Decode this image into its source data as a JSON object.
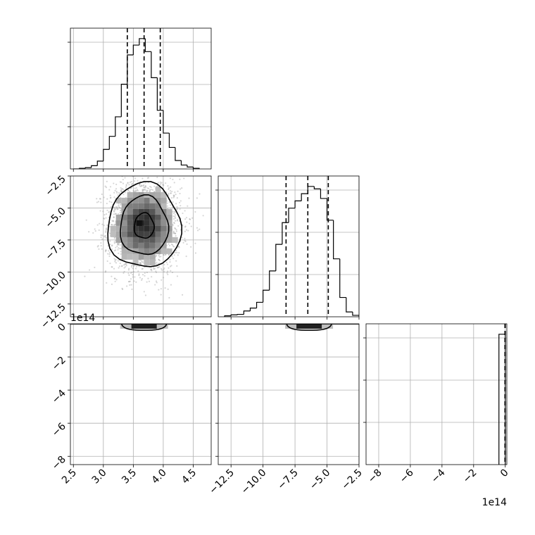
{
  "chart_data": [
    {
      "panel": "1d-marginal-param1",
      "type": "histogram",
      "xlim": [
        2.45,
        4.8
      ],
      "x_ticks": [
        2.5,
        3.0,
        3.5,
        4.0,
        4.5
      ],
      "x_tick_labels": [],
      "bin_edges": [
        2.5,
        2.6,
        2.7,
        2.8,
        2.9,
        3.0,
        3.1,
        3.2,
        3.3,
        3.4,
        3.5,
        3.6,
        3.7,
        3.8,
        3.9,
        4.0,
        4.1,
        4.2,
        4.3,
        4.4,
        4.5,
        4.6
      ],
      "counts": [
        0,
        1,
        2,
        5,
        12,
        30,
        50,
        80,
        130,
        175,
        190,
        200,
        180,
        140,
        90,
        55,
        33,
        13,
        6,
        3,
        1
      ],
      "quantile_lines": [
        3.4,
        3.68,
        3.95
      ],
      "grid": true
    },
    {
      "panel": "1d-marginal-param2",
      "type": "histogram",
      "xlim": [
        -13.5,
        -2.5
      ],
      "x_ticks": [
        -12.5,
        -10.0,
        -7.5,
        -5.0,
        -2.5
      ],
      "x_tick_labels": [],
      "bin_edges": [
        -13.0,
        -12.5,
        -12.0,
        -11.5,
        -11.0,
        -10.5,
        -10.0,
        -9.5,
        -9.0,
        -8.5,
        -8.0,
        -7.5,
        -7.0,
        -6.5,
        -6.0,
        -5.5,
        -5.0,
        -4.5,
        -4.0,
        -3.5,
        -3.0,
        -2.5
      ],
      "counts": [
        2,
        4,
        5,
        12,
        18,
        30,
        55,
        95,
        150,
        195,
        225,
        240,
        255,
        270,
        265,
        245,
        200,
        120,
        40,
        10,
        3
      ],
      "quantile_lines": [
        -8.2,
        -6.5,
        -4.9
      ],
      "grid": true
    },
    {
      "panel": "1d-marginal-param3",
      "type": "histogram",
      "xlim": [
        -8.8,
        0.1
      ],
      "x_ticks": [
        -8,
        -6,
        -4,
        -2,
        0
      ],
      "x_tick_labels": [
        "−8",
        "−6",
        "−4",
        "−2",
        "0"
      ],
      "x_offset_label": "1e14",
      "bin_edges": [
        -0.4,
        0.0
      ],
      "counts": [
        1
      ],
      "quantile_lines": [
        -0.02,
        0.0
      ],
      "grid": true
    },
    {
      "panel": "2d-param1-vs-param2",
      "type": "scatter-density",
      "xlim": [
        2.45,
        4.8
      ],
      "ylim": [
        -13.5,
        -2.5
      ],
      "x_ticks": [
        2.5,
        3.0,
        3.5,
        4.0,
        4.5
      ],
      "y_ticks": [
        -12.5,
        -10.0,
        -7.5,
        -5.0,
        -2.5
      ],
      "y_tick_labels": [
        "−12.5",
        "−10.0",
        "−7.5",
        "−5.0",
        "−2.5"
      ],
      "center": [
        3.68,
        -6.4
      ],
      "spread": [
        0.28,
        1.7
      ],
      "contour_levels": [
        "0.5σ",
        "1σ",
        "1.5σ",
        "2σ"
      ],
      "grid": true
    },
    {
      "panel": "2d-param1-vs-param3",
      "type": "scatter-density",
      "xlim": [
        2.45,
        4.8
      ],
      "ylim": [
        -8.5,
        0.0
      ],
      "x_ticks": [
        2.5,
        3.0,
        3.5,
        4.0,
        4.5
      ],
      "x_tick_labels": [
        "2.5",
        "3.0",
        "3.5",
        "4.0",
        "4.5"
      ],
      "y_ticks": [
        -8,
        -6,
        -4,
        -2,
        0
      ],
      "y_tick_labels": [
        "−8",
        "−6",
        "−4",
        "−2",
        "0"
      ],
      "y_offset_label": "1e14",
      "grid": true
    },
    {
      "panel": "2d-param2-vs-param3",
      "type": "scatter-density",
      "xlim": [
        -13.5,
        -2.5
      ],
      "ylim": [
        -8.5,
        0.0
      ],
      "x_ticks": [
        -12.5,
        -10.0,
        -7.5,
        -5.0,
        -2.5
      ],
      "x_tick_labels": [
        "−12.5",
        "−10.0",
        "−7.5",
        "−5.0",
        "−2.5"
      ],
      "y_ticks": [
        -8,
        -6,
        -4,
        -2,
        0
      ],
      "grid": true
    }
  ]
}
